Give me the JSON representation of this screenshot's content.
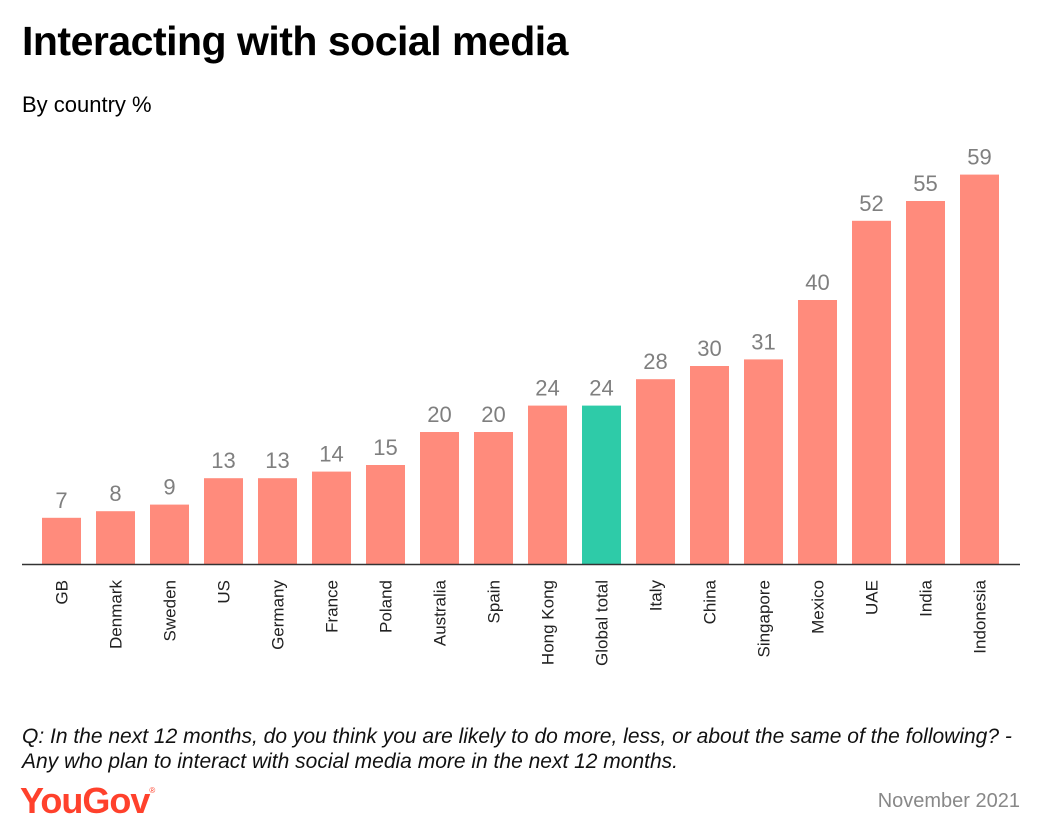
{
  "header": {
    "title": "Interacting with social media",
    "subtitle": "By country %"
  },
  "footer": {
    "question": "Q: In the next 12 months, do you think you are likely to do more, less, or about the same of the following? - Any who plan to interact with social media more in the next 12 months.",
    "logo_text": "YouGov",
    "logo_mark": "®",
    "date": "November 2021"
  },
  "colors": {
    "bar": "#ff8b7c",
    "highlight": "#2ecba8",
    "value_label": "#7f7f7f",
    "brand": "#ff412c"
  },
  "chart_data": {
    "type": "bar",
    "title": "Interacting with social media",
    "subtitle": "By country %",
    "xlabel": "",
    "ylabel": "",
    "ylim": [
      0,
      65
    ],
    "grid": false,
    "categories": [
      "GB",
      "Denmark",
      "Sweden",
      "US",
      "Germany",
      "France",
      "Poland",
      "Australia",
      "Spain",
      "Hong Kong",
      "Global total",
      "Italy",
      "China",
      "Singapore",
      "Mexico",
      "UAE",
      "India",
      "Indonesia"
    ],
    "values": [
      7,
      8,
      9,
      13,
      13,
      14,
      15,
      20,
      20,
      24,
      24,
      28,
      30,
      31,
      40,
      52,
      55,
      59
    ],
    "highlight": "Global total"
  }
}
